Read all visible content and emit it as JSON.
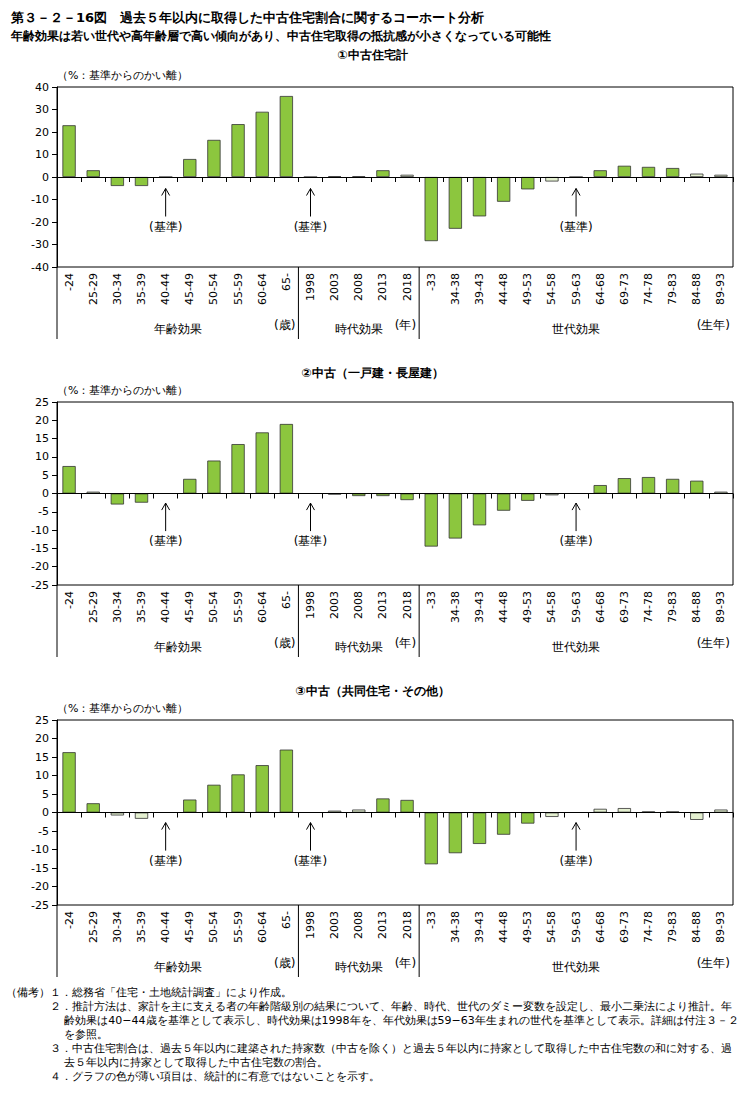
{
  "title": "第３－２－16図　過去５年以内に取得した中古住宅割合に関するコーホート分析",
  "subtitle": "年齢効果は若い世代や高年齢層で高い傾向があり、中古住宅取得の抵抗感が小さくなっている可能性",
  "chart_data": [
    {
      "type": "bar",
      "title": "①中古住宅計",
      "y_label": "（%：基準からのかい離）",
      "categories": [
        "-24",
        "25-29",
        "30-34",
        "35-39",
        "40-44",
        "45-49",
        "50-54",
        "55-59",
        "60-64",
        "65-",
        "1998",
        "2003",
        "2008",
        "2013",
        "2018",
        "-33",
        "34-38",
        "39-43",
        "44-48",
        "49-53",
        "54-58",
        "59-63",
        "64-68",
        "69-73",
        "74-78",
        "79-83",
        "84-88",
        "89-93"
      ],
      "values": [
        23,
        3,
        -4,
        -4,
        0,
        8,
        16.5,
        23.5,
        29,
        36,
        0,
        0.3,
        0.3,
        3,
        1,
        -28.5,
        -23,
        -17.5,
        -11,
        -5.5,
        -2,
        0,
        3,
        5,
        4.5,
        4,
        1.5,
        1
      ],
      "colors": [
        "#8cc63e",
        "#8cc63e",
        "#8cc63e",
        "#8cc63e",
        "#8cc63e",
        "#8cc63e",
        "#8cc63e",
        "#8cc63e",
        "#8cc63e",
        "#8cc63e",
        "#8cc63e",
        "#e4f0d0",
        "#e4f0d0",
        "#8cc63e",
        "#e4f0d0",
        "#8cc63e",
        "#8cc63e",
        "#8cc63e",
        "#8cc63e",
        "#8cc63e",
        "#e4f0d0",
        "#8cc63e",
        "#8cc63e",
        "#8cc63e",
        "#8cc63e",
        "#8cc63e",
        "#e4f0d0",
        "#e4f0d0"
      ],
      "ylim": [
        -40,
        40
      ],
      "yticks": [
        -40,
        -30,
        -20,
        -10,
        0,
        10,
        20,
        30,
        40
      ],
      "grid": false,
      "groups": [
        {
          "label": "年齢効果",
          "unit": "(歳)",
          "first": "-24",
          "last": "65-"
        },
        {
          "label": "時代効果",
          "unit": "(年)",
          "first": "1998",
          "last": "2018"
        },
        {
          "label": "世代効果",
          "unit": "(生年)",
          "first": "-33",
          "last": "89-93"
        }
      ],
      "annotations": [
        {
          "text": "(基準)",
          "x": "40-44",
          "y": -22
        },
        {
          "text": "(基準)",
          "x": "1998",
          "y": -22
        },
        {
          "text": "(基準)",
          "x": "59-63",
          "y": -22
        }
      ]
    },
    {
      "type": "bar",
      "title": "②中古（一戸建・長屋建）",
      "y_label": "（%：基準からのかい離）",
      "categories": [
        "-24",
        "25-29",
        "30-34",
        "35-39",
        "40-44",
        "45-49",
        "50-54",
        "55-59",
        "60-64",
        "65-",
        "1998",
        "2003",
        "2008",
        "2013",
        "2018",
        "-33",
        "34-38",
        "39-43",
        "44-48",
        "49-53",
        "54-58",
        "59-63",
        "64-68",
        "69-73",
        "74-78",
        "79-83",
        "84-88",
        "89-93"
      ],
      "values": [
        7.5,
        0.5,
        -3,
        -2.5,
        0,
        4,
        9,
        13.5,
        16.7,
        19,
        0,
        -0.3,
        -0.7,
        -0.7,
        -1.8,
        -14.5,
        -12.3,
        -8.7,
        -4.7,
        -2,
        -0.5,
        0,
        2.3,
        4.2,
        4.5,
        4,
        3.5,
        0.5
      ],
      "colors": [
        "#8cc63e",
        "#e4f0d0",
        "#8cc63e",
        "#8cc63e",
        "#8cc63e",
        "#8cc63e",
        "#8cc63e",
        "#8cc63e",
        "#8cc63e",
        "#8cc63e",
        "#8cc63e",
        "#e4f0d0",
        "#8cc63e",
        "#8cc63e",
        "#8cc63e",
        "#8cc63e",
        "#8cc63e",
        "#8cc63e",
        "#8cc63e",
        "#8cc63e",
        "#e4f0d0",
        "#8cc63e",
        "#8cc63e",
        "#8cc63e",
        "#8cc63e",
        "#8cc63e",
        "#8cc63e",
        "#e4f0d0"
      ],
      "ylim": [
        -25,
        25
      ],
      "yticks": [
        -25,
        -20,
        -15,
        -10,
        -5,
        0,
        5,
        10,
        15,
        20,
        25
      ],
      "grid": false,
      "groups": [
        {
          "label": "年齢効果",
          "unit": "(歳)",
          "first": "-24",
          "last": "65-"
        },
        {
          "label": "時代効果",
          "unit": "(年)",
          "first": "1998",
          "last": "2018"
        },
        {
          "label": "世代効果",
          "unit": "(生年)",
          "first": "-33",
          "last": "89-93"
        }
      ],
      "annotations": [
        {
          "text": "(基準)",
          "x": "40-44",
          "y": -13
        },
        {
          "text": "(基準)",
          "x": "1998",
          "y": -13
        },
        {
          "text": "(基準)",
          "x": "59-63",
          "y": -13
        }
      ]
    },
    {
      "type": "bar",
      "title": "③中古（共同住宅・その他）",
      "y_label": "（%：基準からのかい離）",
      "categories": [
        "-24",
        "25-29",
        "30-34",
        "35-39",
        "40-44",
        "45-49",
        "50-54",
        "55-59",
        "60-64",
        "65-",
        "1998",
        "2003",
        "2008",
        "2013",
        "2018",
        "-33",
        "34-38",
        "39-43",
        "44-48",
        "49-53",
        "54-58",
        "59-63",
        "64-68",
        "69-73",
        "74-78",
        "79-83",
        "84-88",
        "89-93"
      ],
      "values": [
        16.3,
        2.5,
        -0.8,
        -1.7,
        0,
        3.5,
        7.5,
        10.3,
        12.8,
        17,
        0,
        0.5,
        0.8,
        3.8,
        3.4,
        -14,
        -11,
        -8.5,
        -6,
        -3,
        -1.2,
        0,
        1,
        1.2,
        0.3,
        0.3,
        -2,
        0.8
      ],
      "colors": [
        "#8cc63e",
        "#8cc63e",
        "#e4f0d0",
        "#e4f0d0",
        "#8cc63e",
        "#8cc63e",
        "#8cc63e",
        "#8cc63e",
        "#8cc63e",
        "#8cc63e",
        "#8cc63e",
        "#e4f0d0",
        "#e4f0d0",
        "#8cc63e",
        "#8cc63e",
        "#8cc63e",
        "#8cc63e",
        "#8cc63e",
        "#8cc63e",
        "#8cc63e",
        "#e4f0d0",
        "#8cc63e",
        "#e4f0d0",
        "#e4f0d0",
        "#e4f0d0",
        "#e4f0d0",
        "#e4f0d0",
        "#e4f0d0"
      ],
      "ylim": [
        -25,
        25
      ],
      "yticks": [
        -25,
        -20,
        -15,
        -10,
        -5,
        0,
        5,
        10,
        15,
        20,
        25
      ],
      "grid": false,
      "groups": [
        {
          "label": "年齢効果",
          "unit": "(歳)",
          "first": "-24",
          "last": "65-"
        },
        {
          "label": "時代効果",
          "unit": "(年)",
          "first": "1998",
          "last": "2018"
        },
        {
          "label": "世代効果",
          "unit": "(生年)",
          "first": "-33",
          "last": "89-93"
        }
      ],
      "annotations": [
        {
          "text": "(基準)",
          "x": "40-44",
          "y": -13
        },
        {
          "text": "(基準)",
          "x": "1998",
          "y": -13
        },
        {
          "text": "(基準)",
          "x": "59-63",
          "y": -13
        }
      ]
    }
  ],
  "notes": {
    "label": "（備考）",
    "items": [
      "１．総務省「住宅・土地統計調査」により作成。",
      "２．推計方法は、家計を主に支える者の年齢階級別の結果について、年齢、時代、世代のダミー変数を設定し、最小二乗法により推計。年齢効果は40−44歳を基準として表示し、時代効果は1998年を、年代効果は59−63年生まれの世代を基準として表示。詳細は付注３－２を参照。",
      "３．中古住宅割合は、過去５年以内に建築された持家数（中古を除く）と過去５年以内に持家として取得した中古住宅数の和に対する、過去５年以内に持家として取得した中古住宅数の割合。",
      "４．グラフの色が薄い項目は、統計的に有意ではないことを示す。"
    ]
  }
}
